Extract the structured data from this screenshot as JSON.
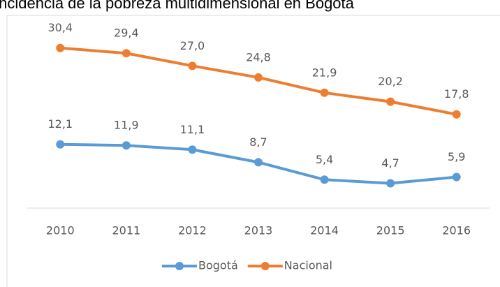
{
  "chart_data": {
    "type": "line",
    "title": "Incidencia de la pobreza multidimensional en Bogotá",
    "categories": [
      "2010",
      "2011",
      "2012",
      "2013",
      "2014",
      "2015",
      "2016"
    ],
    "series": [
      {
        "name": "Bogotá",
        "color": "#5b9bd5",
        "values": [
          12.1,
          11.9,
          11.1,
          8.7,
          5.4,
          4.7,
          5.9
        ],
        "value_labels": [
          "12,1",
          "11,9",
          "11,1",
          "8,7",
          "5,4",
          "4,7",
          "5,9"
        ]
      },
      {
        "name": "Nacional",
        "color": "#ed7d31",
        "values": [
          30.4,
          29.4,
          27.0,
          24.8,
          21.9,
          20.2,
          17.8
        ],
        "value_labels": [
          "30,4",
          "29,4",
          "27,0",
          "24,8",
          "21,9",
          "20,2",
          "17,8"
        ]
      }
    ],
    "ylim": [
      0,
      35
    ],
    "legend": "bottom"
  }
}
